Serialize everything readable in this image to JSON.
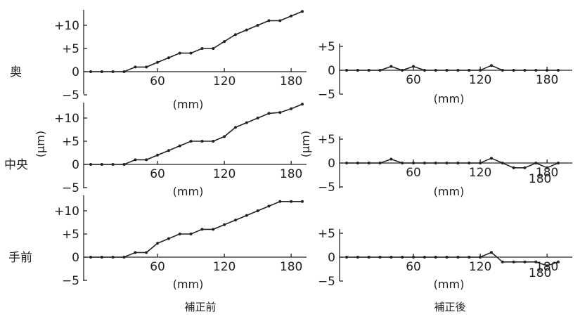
{
  "row_labels": [
    "奥",
    "中央",
    "手前"
  ],
  "y_unit_label": "(μm)",
  "x_unit_label": "(mm)",
  "captions": {
    "before": "補正前",
    "after": "補正後"
  },
  "chart_data": [
    {
      "type": "line",
      "panel": "奥-補正前",
      "xlabel": "(mm)",
      "xlim": [
        0,
        195
      ],
      "ylim": [
        -5,
        13
      ],
      "yticks": [
        "+10",
        "+5",
        "0",
        "−5"
      ],
      "xticks": [
        "60",
        "120",
        "180"
      ],
      "x": [
        0,
        10,
        20,
        30,
        40,
        50,
        60,
        70,
        80,
        90,
        100,
        110,
        120,
        130,
        140,
        150,
        160,
        170,
        180,
        190
      ],
      "y": [
        0,
        0,
        0,
        0,
        1,
        1,
        2,
        3,
        4,
        4,
        5,
        5,
        6.5,
        8,
        9,
        10,
        11,
        11,
        12,
        13
      ]
    },
    {
      "type": "line",
      "panel": "奥-補正後",
      "xlabel": "(mm)",
      "xlim": [
        0,
        195
      ],
      "ylim": [
        -5,
        5
      ],
      "yticks": [
        "+5",
        "0",
        "−5"
      ],
      "xticks": [
        "60",
        "120",
        "180"
      ],
      "x": [
        0,
        10,
        20,
        30,
        40,
        50,
        60,
        70,
        80,
        90,
        100,
        110,
        120,
        130,
        140,
        150,
        160,
        170,
        180,
        190
      ],
      "y": [
        0,
        0,
        0,
        0,
        0.8,
        0,
        0.8,
        0,
        0,
        0,
        0,
        0,
        0,
        1,
        0,
        0,
        0,
        0,
        0,
        0
      ]
    },
    {
      "type": "line",
      "panel": "中央-補正前",
      "xlabel": "(mm)",
      "xlim": [
        0,
        195
      ],
      "ylim": [
        -5,
        13
      ],
      "yticks": [
        "+10",
        "+5",
        "0",
        "−5"
      ],
      "xticks": [
        "60",
        "120",
        "180"
      ],
      "x": [
        0,
        10,
        20,
        30,
        40,
        50,
        60,
        70,
        80,
        90,
        100,
        110,
        120,
        130,
        140,
        150,
        160,
        170,
        180,
        190
      ],
      "y": [
        0,
        0,
        0,
        0,
        1,
        1,
        2,
        3,
        4,
        5,
        5,
        5,
        6,
        8,
        9,
        10,
        11,
        11.2,
        12,
        13
      ]
    },
    {
      "type": "line",
      "panel": "中央-補正後",
      "xlabel": "(mm)",
      "xlim": [
        0,
        195
      ],
      "ylim": [
        -5,
        5
      ],
      "yticks": [
        "+5",
        "0",
        "−5"
      ],
      "xticks": [
        "60",
        "120",
        "180"
      ],
      "annotation": "180",
      "x": [
        0,
        10,
        20,
        30,
        40,
        50,
        60,
        70,
        80,
        90,
        100,
        110,
        120,
        130,
        140,
        150,
        160,
        170,
        180,
        190
      ],
      "y": [
        0,
        0,
        0,
        0,
        0.8,
        0,
        0,
        0,
        0,
        0,
        0,
        0,
        0,
        1,
        0,
        -1,
        -1,
        0,
        -1,
        0
      ]
    },
    {
      "type": "line",
      "panel": "手前-補正前",
      "xlabel": "(mm)",
      "xlim": [
        0,
        195
      ],
      "ylim": [
        -5,
        13
      ],
      "yticks": [
        "+10",
        "+5",
        "0",
        "−5"
      ],
      "xticks": [
        "60",
        "120",
        "180"
      ],
      "x": [
        0,
        10,
        20,
        30,
        40,
        50,
        60,
        70,
        80,
        90,
        100,
        110,
        120,
        130,
        140,
        150,
        160,
        170,
        180,
        190
      ],
      "y": [
        0,
        0,
        0,
        0,
        1,
        1,
        3,
        4,
        5,
        5,
        6,
        6,
        7,
        8,
        9,
        10,
        11,
        12,
        12,
        12
      ]
    },
    {
      "type": "line",
      "panel": "手前-補正後",
      "xlabel": "(mm)",
      "xlim": [
        0,
        195
      ],
      "ylim": [
        -5,
        5
      ],
      "yticks": [
        "+5",
        "0",
        "−5"
      ],
      "xticks": [
        "60",
        "120",
        "180"
      ],
      "annotation": "180",
      "x": [
        0,
        10,
        20,
        30,
        40,
        50,
        60,
        70,
        80,
        90,
        100,
        110,
        120,
        130,
        140,
        150,
        160,
        170,
        180,
        190
      ],
      "y": [
        0,
        0,
        0,
        0,
        0,
        0,
        0,
        0,
        0,
        0,
        0,
        0,
        0,
        1,
        -1,
        -1,
        -1,
        -1,
        -1.8,
        -1
      ]
    }
  ]
}
